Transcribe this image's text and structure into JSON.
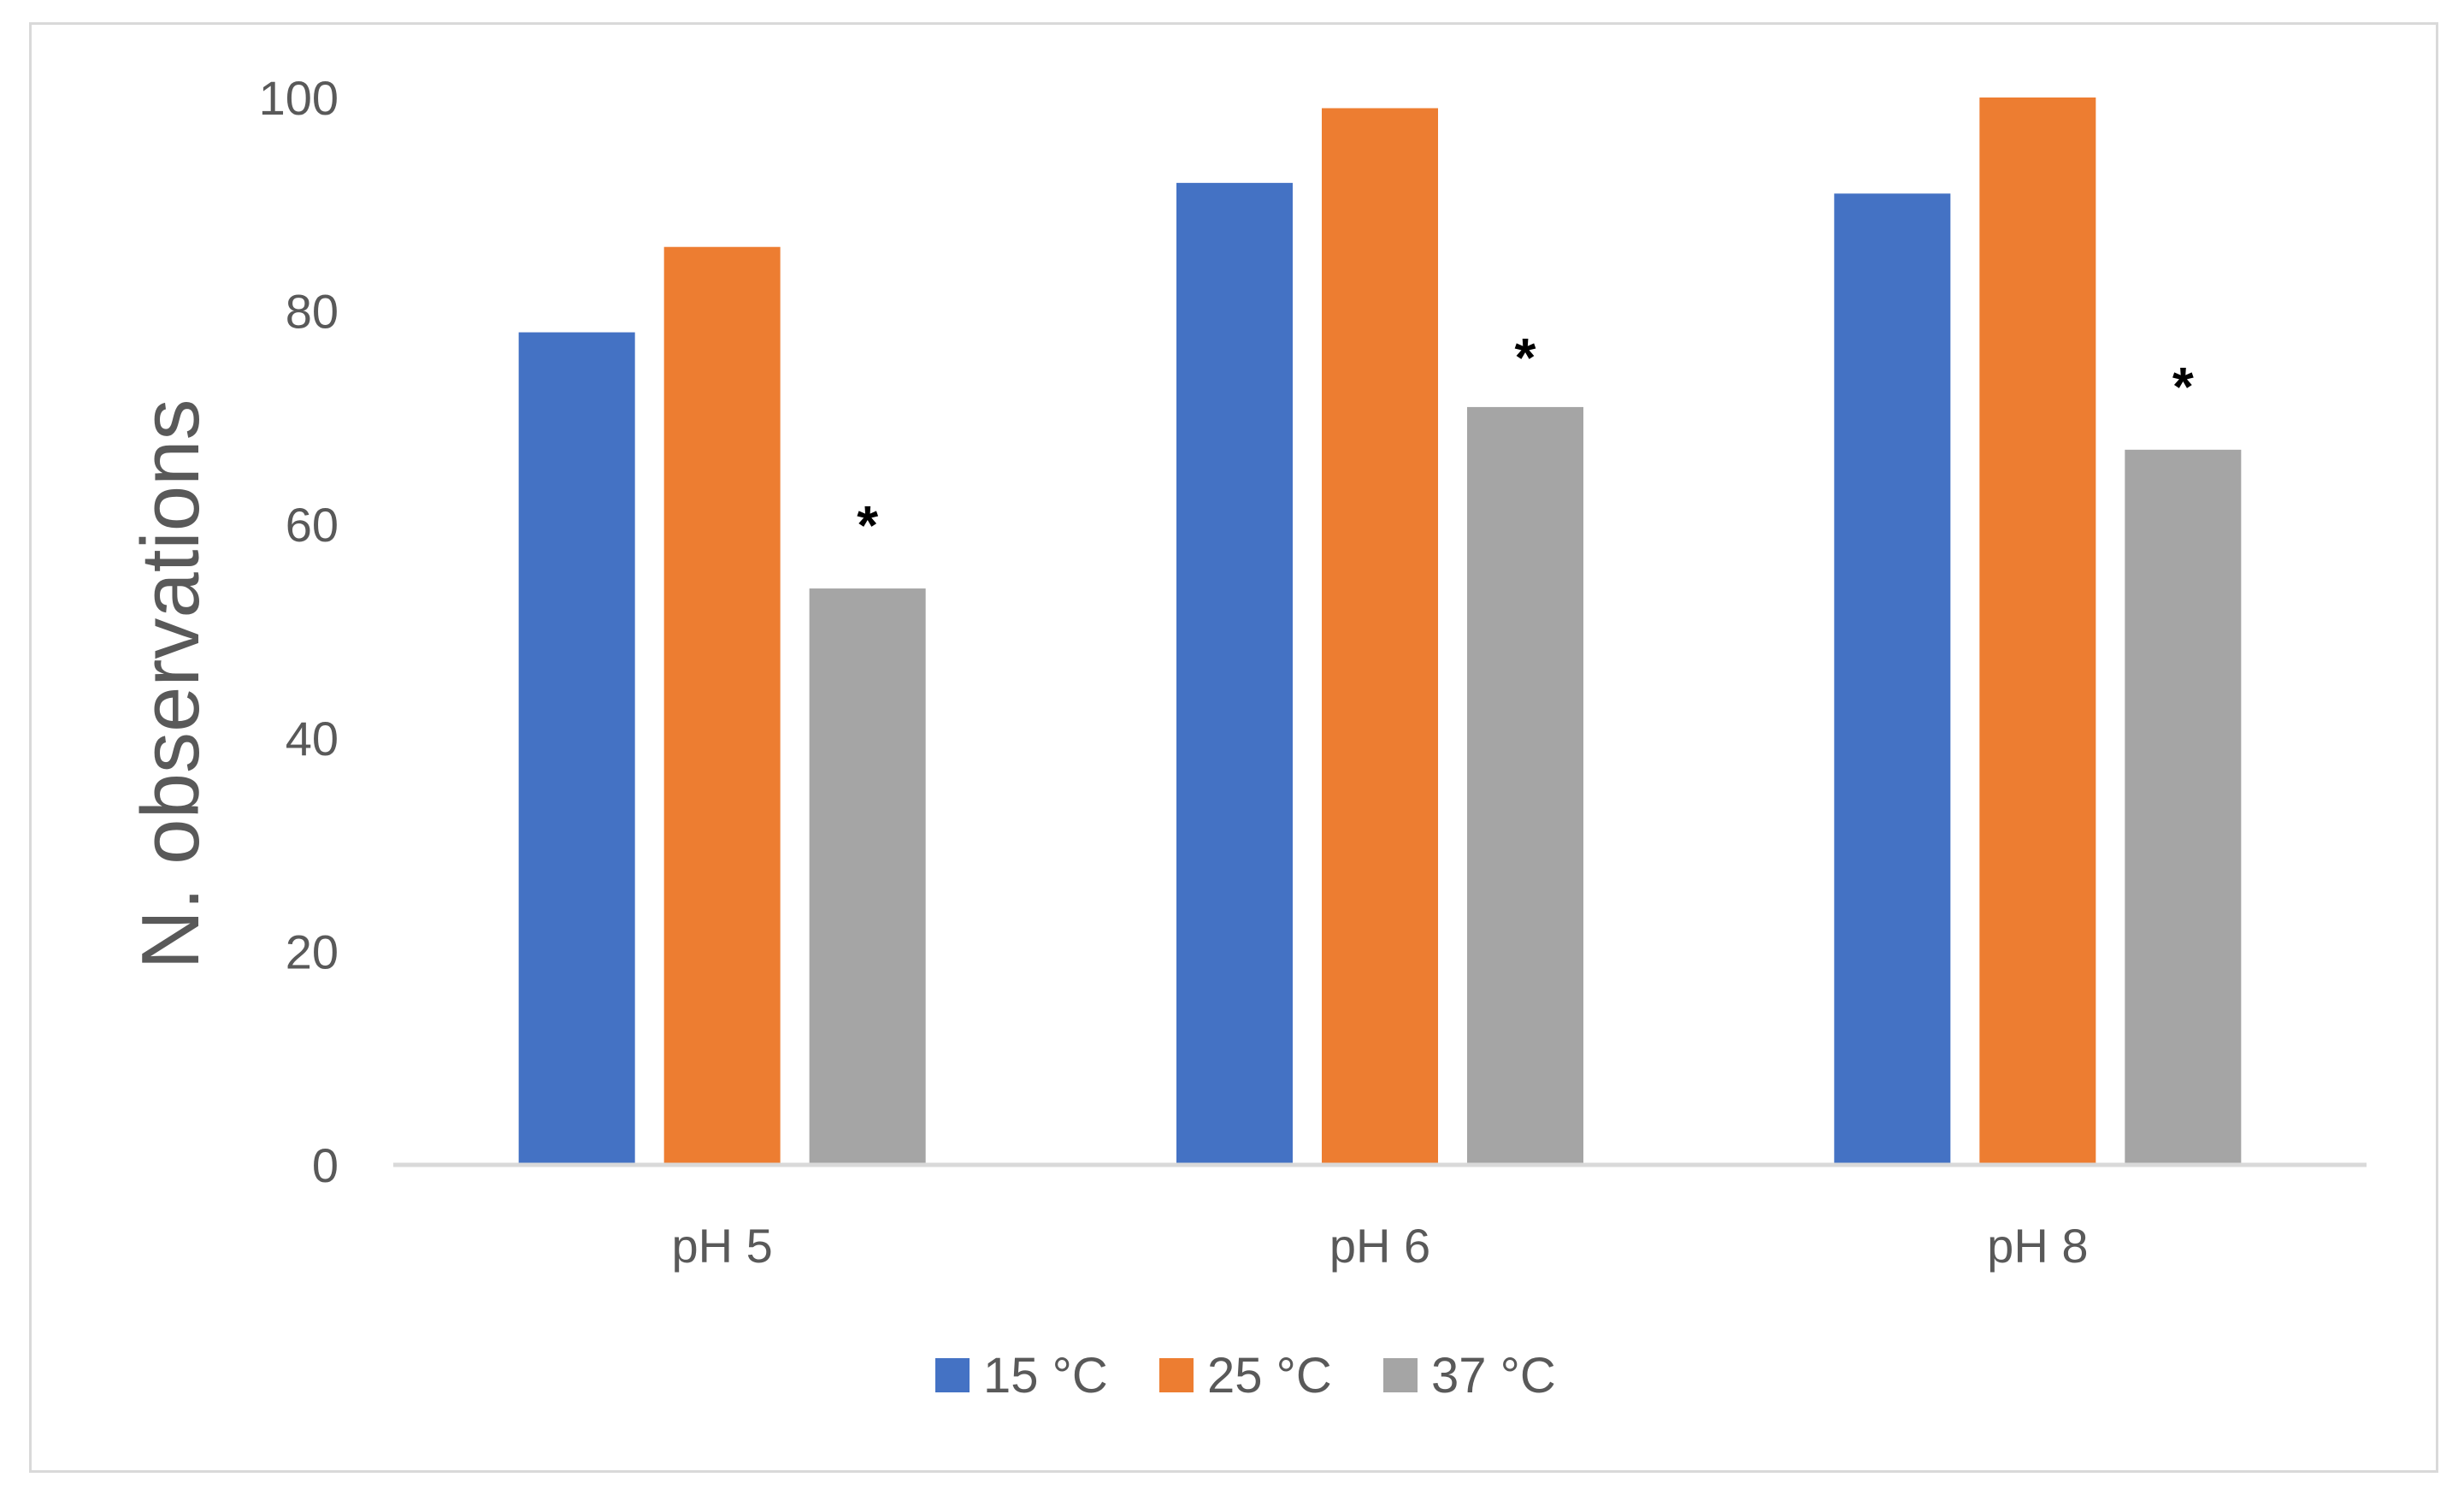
{
  "chart_data": {
    "type": "bar",
    "categories": [
      "pH 5",
      "pH 6",
      "pH 8"
    ],
    "series": [
      {
        "name": "15 °C",
        "color": "#4472C4",
        "values": [
          78,
          92,
          91
        ]
      },
      {
        "name": "25 °C",
        "color": "#ED7D31",
        "values": [
          86,
          99,
          100
        ]
      },
      {
        "name": "37 °C",
        "color": "#A5A5A5",
        "values": [
          54,
          71,
          67
        ]
      }
    ],
    "annotations": [
      {
        "category": "pH 5",
        "series": "37 °C",
        "text": "*"
      },
      {
        "category": "pH 6",
        "series": "37 °C",
        "text": "*"
      },
      {
        "category": "pH 8",
        "series": "37 °C",
        "text": "*"
      }
    ],
    "title": "",
    "xlabel": "",
    "ylabel": "N. observations",
    "ylim": [
      0,
      100
    ],
    "yticks": [
      0,
      20,
      40,
      60,
      80,
      100
    ],
    "grid": false,
    "legend_position": "bottom",
    "axis_color": "#D9D9D9"
  }
}
